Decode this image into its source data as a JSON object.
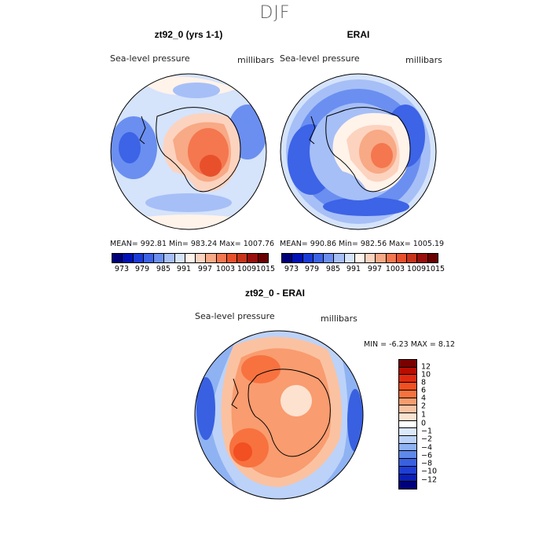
{
  "figure": {
    "season": "DJF",
    "panels": [
      {
        "title": "zt92_0 (yrs 1-1)",
        "variable_label": "Sea-level pressure",
        "units_label": "millibars",
        "stats": "MEAN= 992.81   Min= 983.24   Max= 1007.76"
      },
      {
        "title": "ERAI",
        "variable_label": "Sea-level pressure",
        "units_label": "millibars",
        "stats": "MEAN= 990.86   Min= 982.56   Max= 1005.19"
      },
      {
        "title": "zt92_0 - ERAI",
        "variable_label": "Sea-level pressure",
        "units_label": "millibars",
        "stats": "MIN =    -6.23  MAX =     8.12"
      }
    ]
  },
  "colorbars": {
    "abs_colors": [
      "#00007a",
      "#0011b5",
      "#1a3ad8",
      "#3d63e6",
      "#6b8ff0",
      "#a6bff7",
      "#d5e3fb",
      "#fff3ea",
      "#fcd3bf",
      "#f8a985",
      "#f4774f",
      "#e8502c",
      "#c8341b",
      "#990f0c",
      "#6a0000"
    ],
    "abs_ticks": [
      "973",
      "979",
      "985",
      "991",
      "997",
      "1003",
      "1009",
      "1015"
    ],
    "diff_colors": [
      "#7a0000",
      "#b80d00",
      "#e02a0f",
      "#f24f22",
      "#f7723f",
      "#f99c6f",
      "#fbc2a1",
      "#fde2d0",
      "#ffffff",
      "#dce8fb",
      "#bcd2f8",
      "#8fb2f3",
      "#5e89ea",
      "#3860e0",
      "#1d3fd6",
      "#0a1fb8",
      "#00007a"
    ],
    "diff_ticks": [
      "12",
      "10",
      "8",
      "6",
      "4",
      "2",
      "1",
      "0",
      "−1",
      "−2",
      "−4",
      "−6",
      "−8",
      "−10",
      "−12"
    ]
  },
  "maps": [
    {
      "description": "model sea-level pressure, Antarctic polar stereographic",
      "ocean_color": "#a6bff7",
      "continent_color": "#f4774f"
    },
    {
      "description": "reanalysis sea-level pressure",
      "ocean_color": "#6b8ff0",
      "continent_color": "#f4774f"
    },
    {
      "description": "difference field",
      "ocean_color": "#f4774f",
      "edge_color": "#3d63e6"
    }
  ]
}
